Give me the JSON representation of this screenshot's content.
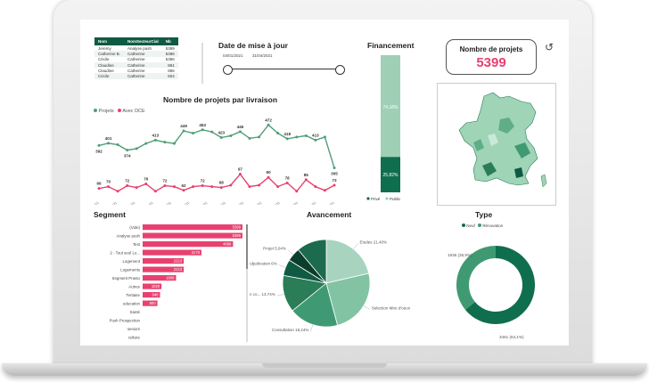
{
  "table": {
    "headers": [
      "Nom",
      "NomSecteurCial",
      "Nb"
    ],
    "rows": [
      [
        "Jeremy",
        "Analyse push",
        "5399"
      ],
      [
        "Catherine B.",
        "Catherine",
        "5396"
      ],
      [
        "Cécile",
        "Catherine",
        "5396"
      ],
      [
        "Claudine",
        "Catherine",
        "861"
      ],
      [
        "Claudine",
        "Catherine",
        "856"
      ],
      [
        "Cécile",
        "Catherine",
        "604"
      ]
    ]
  },
  "date_filter": {
    "title": "Date de mise à jour",
    "start": "04/01/2021",
    "end": "31/04/2021"
  },
  "financement": {
    "title": "Financement",
    "series": [
      {
        "name": "Privé",
        "value": 25.82,
        "label": "25,82%"
      },
      {
        "name": "Public",
        "value": 74.18,
        "label": "74,18%"
      }
    ],
    "colors": {
      "prive": "#0f6e4e",
      "public": "#9fcfb5"
    }
  },
  "kpi": {
    "title": "Nombre de projets",
    "value": "5399",
    "color": "#e8406f"
  },
  "livraison": {
    "title": "Nombre de projets par livraison",
    "legend": [
      "Projets",
      "Avec DCE"
    ],
    "colors": {
      "projets": "#4f9e78",
      "dce": "#e8406f"
    },
    "chart_data": {
      "type": "line",
      "categories": [
        "09/01/21",
        "01/01/21",
        "10/01/21",
        "11/01/21",
        "12/01/21",
        "01/02/21",
        "02/02/21",
        "03/02/21",
        "04/02/21",
        "05/02/21",
        "06/02/21",
        "07/02/21",
        "08/02/21",
        "09/02/21",
        "10/02/21",
        "01/03/21",
        "02/03/21",
        "03/03/21",
        "04/03/21",
        "05/03/21",
        "06/03/21",
        "07/03/21",
        "08/03/21",
        "09/03/21",
        "10/03/21",
        "01/04/21"
      ],
      "series": [
        {
          "name": "Projets",
          "values": [
            392,
            401,
            395,
            374,
            380,
            400,
            413,
            405,
            400,
            449,
            440,
            453,
            445,
            423,
            430,
            446,
            420,
            425,
            472,
            440,
            418,
            425,
            430,
            413,
            425,
            305
          ]
        },
        {
          "name": "Avec DCE",
          "values": [
            66,
            70,
            60,
            72,
            68,
            76,
            60,
            72,
            70,
            62,
            70,
            72,
            70,
            68,
            73,
            97,
            70,
            73,
            90,
            70,
            78,
            60,
            85,
            70,
            62,
            73
          ]
        }
      ],
      "point_labels": [
        {
          "series": 0,
          "index": 0,
          "text": "392"
        },
        {
          "series": 0,
          "index": 1,
          "text": "401"
        },
        {
          "series": 0,
          "index": 3,
          "text": "374"
        },
        {
          "series": 0,
          "index": 6,
          "text": "413"
        },
        {
          "series": 0,
          "index": 9,
          "text": "449"
        },
        {
          "series": 0,
          "index": 11,
          "text": "453"
        },
        {
          "series": 0,
          "index": 13,
          "text": "423"
        },
        {
          "series": 0,
          "index": 15,
          "text": "446"
        },
        {
          "series": 0,
          "index": 18,
          "text": "472"
        },
        {
          "series": 0,
          "index": 20,
          "text": "418"
        },
        {
          "series": 0,
          "index": 23,
          "text": "413"
        },
        {
          "series": 0,
          "index": 25,
          "text": "305"
        },
        {
          "series": 1,
          "index": 0,
          "text": "66"
        },
        {
          "series": 1,
          "index": 1,
          "text": "70"
        },
        {
          "series": 1,
          "index": 3,
          "text": "72"
        },
        {
          "series": 1,
          "index": 5,
          "text": "76"
        },
        {
          "series": 1,
          "index": 7,
          "text": "72"
        },
        {
          "series": 1,
          "index": 9,
          "text": "62"
        },
        {
          "series": 1,
          "index": 11,
          "text": "72"
        },
        {
          "series": 1,
          "index": 13,
          "text": "68"
        },
        {
          "series": 1,
          "index": 15,
          "text": "97"
        },
        {
          "series": 1,
          "index": 18,
          "text": "90"
        },
        {
          "series": 1,
          "index": 20,
          "text": "78"
        },
        {
          "series": 1,
          "index": 22,
          "text": "85"
        },
        {
          "series": 1,
          "index": 25,
          "text": "73"
        }
      ],
      "x_tick_labels": [
        "09/01/21",
        "10/01/21",
        "11/01/21",
        "12/01/21",
        "01/02/21",
        "02/02/21",
        "03/02/21",
        "04/02/21",
        "05/02/21",
        "06/02/21",
        "07/02/21",
        "08/02/21",
        "01/03/21",
        "01/04/21"
      ]
    }
  },
  "segment": {
    "title": "Segment",
    "color": "#e8406f",
    "chart_data": {
      "type": "bar",
      "categories": [
        "(Vide)",
        "Analyse push",
        "Test",
        "2 - Tout seul Lo...",
        "Logement",
        "Logements",
        "Segment Prasto",
        "Autres",
        "Tertiaire",
        "education",
        "Santé",
        "Push Prospection",
        "seniors",
        "culture"
      ],
      "values": [
        5399,
        5399,
        4889,
        3178,
        2223,
        2223,
        1808,
        1020,
        940,
        800,
        0,
        0,
        0,
        0
      ],
      "labels": [
        "5399",
        "5399",
        "4889",
        "3178",
        "2223",
        "2223",
        "1808",
        "1020",
        "940",
        "800",
        "",
        "",
        "",
        ""
      ],
      "xlim": [
        0,
        5400
      ]
    }
  },
  "avancement": {
    "title": "Avancement",
    "chart_data": {
      "type": "pie",
      "slices": [
        {
          "label": "Etudes 21,40%",
          "value": 21.4,
          "color": "#a8d4bf"
        },
        {
          "label": "Selection Mtre d'oeuvre 24,47%",
          "value": 24.47,
          "color": "#82c3a3"
        },
        {
          "label": "Consultation 18,24%",
          "value": 18.24,
          "color": "#3f9a73"
        },
        {
          "label": "Travaux en co... 13,74%",
          "value": 13.74,
          "color": "#2a7d57"
        },
        {
          "label": "Adjudication 6%",
          "value": 6.0,
          "color": "#0f5a43"
        },
        {
          "label": "Projet 5,04%",
          "value": 5.04,
          "color": "#0b3d2c"
        },
        {
          "label": "",
          "value": 11.11,
          "color": "#1d6b4f"
        }
      ]
    }
  },
  "type": {
    "title": "Type",
    "legend": [
      "Neuf",
      "Rénovation"
    ],
    "chart_data": {
      "type": "pie",
      "slices": [
        {
          "label": "3461 (64,1%)",
          "value": 64.1,
          "color": "#0f6e4e"
        },
        {
          "label": "1936 (35,9%)",
          "value": 35.9,
          "color": "#3f9a73"
        }
      ]
    }
  },
  "map": {
    "fill": "#9fd4b7",
    "dark": "#2a7d57"
  },
  "reset_icon": "undo-icon"
}
